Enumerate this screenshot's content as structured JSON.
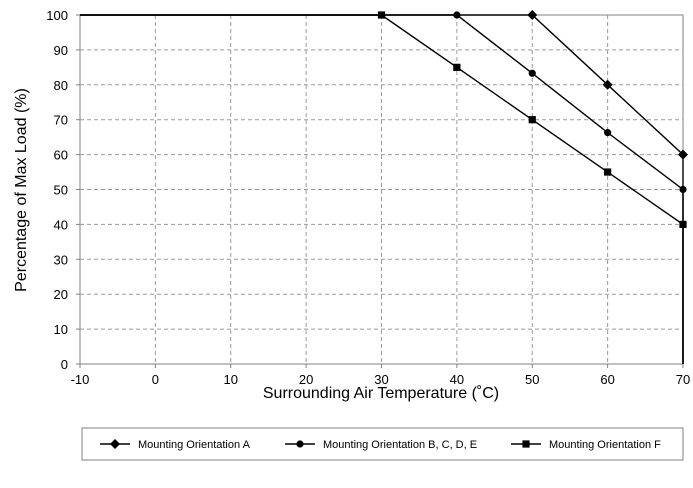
{
  "chart_data": {
    "type": "line",
    "xlabel": "Surrounding Air Temperature (˚C)",
    "ylabel": "Percentage of Max Load (%)",
    "xlim": [
      -10,
      70
    ],
    "ylim": [
      0,
      100
    ],
    "x_ticks": [
      "-10",
      "0",
      "10",
      "20",
      "30",
      "40",
      "50",
      "60",
      "70"
    ],
    "y_ticks": [
      "0",
      "10",
      "20",
      "30",
      "40",
      "50",
      "60",
      "70",
      "80",
      "90",
      "100"
    ],
    "grid": true,
    "legend_position": "bottom",
    "series": [
      {
        "name": "Mounting Orientation A",
        "marker": "diamond",
        "points": [
          [
            -10,
            100
          ],
          [
            50,
            100
          ],
          [
            60,
            80
          ],
          [
            70,
            60
          ],
          [
            70,
            0
          ]
        ],
        "marked": [
          [
            50,
            100
          ],
          [
            60,
            80
          ],
          [
            70,
            60
          ]
        ]
      },
      {
        "name": "Mounting Orientation B, C, D, E",
        "marker": "circle",
        "points": [
          [
            -10,
            100
          ],
          [
            40,
            100
          ],
          [
            50,
            83.3
          ],
          [
            60,
            66.3
          ],
          [
            70,
            50
          ],
          [
            70,
            0
          ]
        ],
        "marked": [
          [
            40,
            100
          ],
          [
            50,
            83.3
          ],
          [
            60,
            66.3
          ],
          [
            70,
            50
          ]
        ]
      },
      {
        "name": "Mounting Orientation F",
        "marker": "square",
        "points": [
          [
            -10,
            100
          ],
          [
            30,
            100
          ],
          [
            40,
            85
          ],
          [
            50,
            70
          ],
          [
            60,
            55
          ],
          [
            70,
            40
          ],
          [
            70,
            0
          ]
        ],
        "marked": [
          [
            30,
            100
          ],
          [
            40,
            85
          ],
          [
            50,
            70
          ],
          [
            60,
            55
          ],
          [
            70,
            40
          ]
        ]
      }
    ]
  }
}
